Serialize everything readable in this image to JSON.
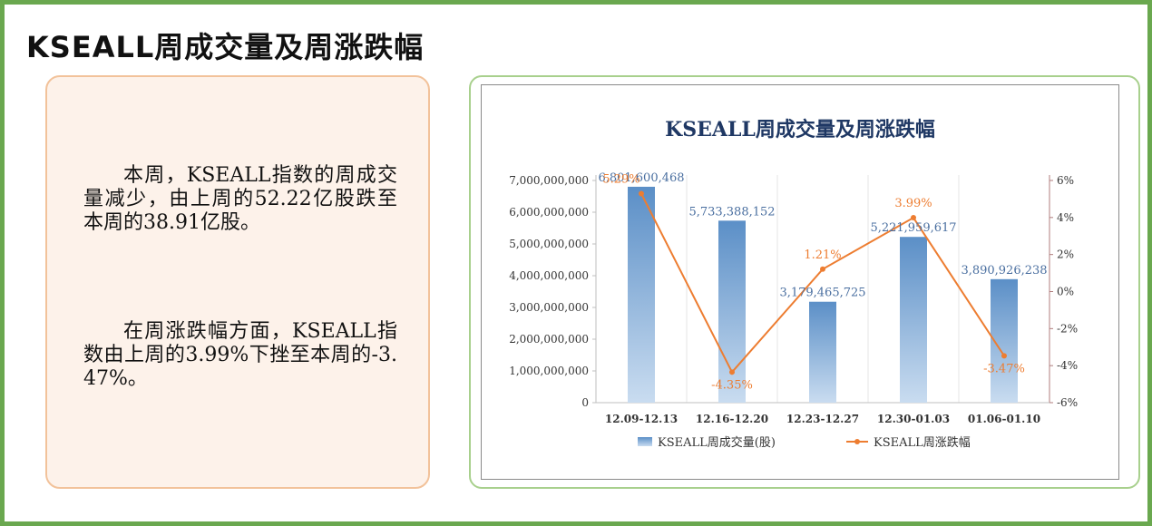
{
  "page": {
    "title": "KSEALL周成交量及周涨跌幅"
  },
  "summary": {
    "paragraph1": "本周，KSEALL指数的周成交量减少，由上周的52.22亿股跌至本周的38.91亿股。",
    "paragraph2": "在周涨跌幅方面，KSEALL指数由上周的3.99%下挫至本周的-3.47%。"
  },
  "colors": {
    "frame": "#6aa84f",
    "bar": "#5b8fc7",
    "line": "#ed7d31",
    "title": "#1f3864",
    "right_axis": "#b07d7d"
  },
  "chart_data": {
    "type": "bar",
    "title": "KSEALL周成交量及周涨跌幅",
    "categories": [
      "12.09-12.13",
      "12.16-12.20",
      "12.23-12.27",
      "12.30-01.03",
      "01.06-01.10"
    ],
    "series": [
      {
        "name": "KSEALL周成交量(股)",
        "type": "bar",
        "axis": "left",
        "values": [
          6801600468,
          5733388152,
          3179465725,
          5221959617,
          3890926238
        ],
        "labels": [
          "6,801,600,468",
          "5,733,388,152",
          "3,179,465,725",
          "5,221,959,617",
          "3,890,926,238"
        ]
      },
      {
        "name": "KSEALL周涨跌幅",
        "type": "line",
        "axis": "right",
        "values": [
          5.29,
          -4.35,
          1.21,
          3.99,
          -3.47
        ],
        "labels": [
          "5.29%",
          "-4.35%",
          "1.21%",
          "3.99%",
          "-3.47%"
        ]
      }
    ],
    "y_left": {
      "ylim": [
        0,
        7000000000
      ],
      "ticks": [
        "0",
        "1,000,000,000",
        "2,000,000,000",
        "3,000,000,000",
        "4,000,000,000",
        "5,000,000,000",
        "6,000,000,000",
        "7,000,000,000"
      ]
    },
    "y_right": {
      "ylim": [
        -6,
        6
      ],
      "ticks": [
        "-6%",
        "-4%",
        "-2%",
        "0%",
        "2%",
        "4%",
        "6%"
      ]
    },
    "legend": "bottom",
    "grid": "vertical"
  }
}
